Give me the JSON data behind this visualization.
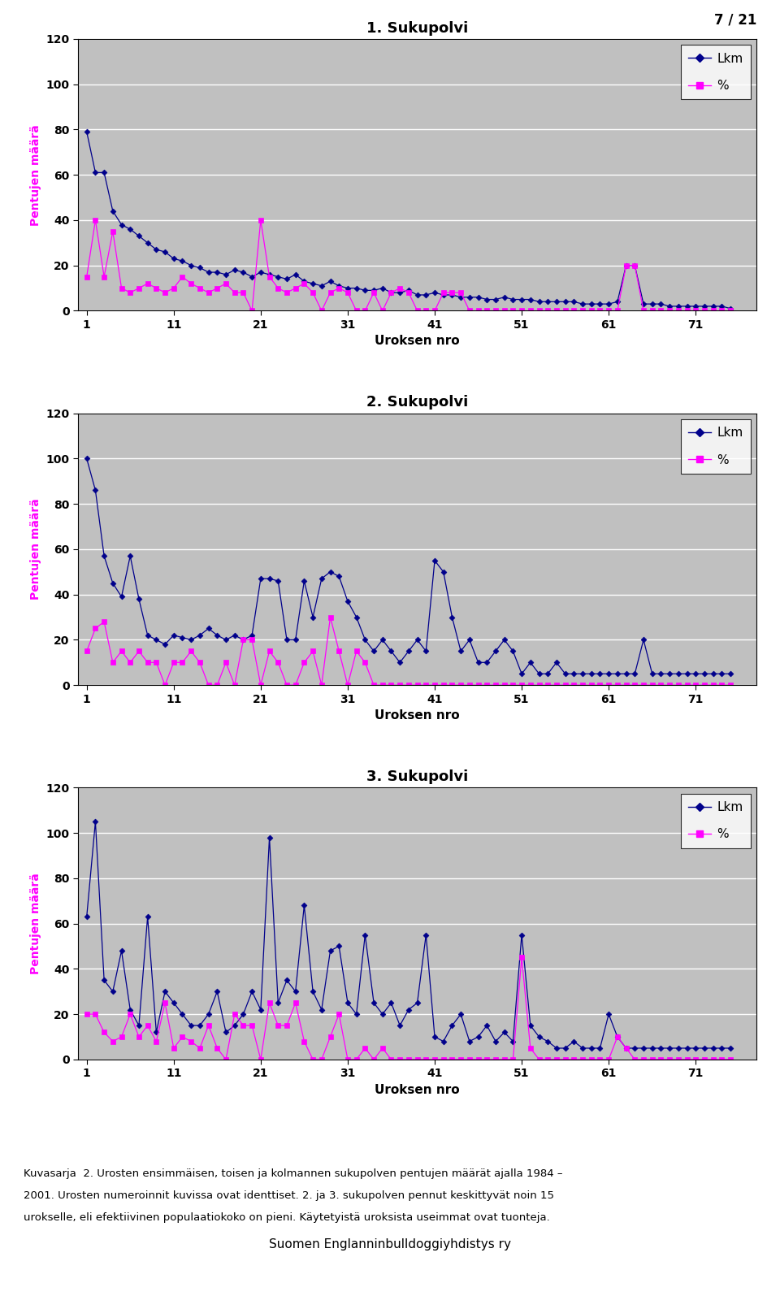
{
  "title1": "1. Sukupolvi",
  "title2": "2. Sukupolvi",
  "title3": "3. Sukupolvi",
  "xlabel": "Uroksen nro",
  "ylabel": "Pentujen määrä",
  "xticks": [
    1,
    11,
    21,
    31,
    41,
    51,
    61,
    71
  ],
  "ylim": [
    0,
    120
  ],
  "yticks": [
    0,
    20,
    40,
    60,
    80,
    100,
    120
  ],
  "gen1_lkm": [
    79,
    61,
    61,
    44,
    38,
    36,
    33,
    30,
    27,
    26,
    23,
    22,
    20,
    19,
    17,
    17,
    16,
    18,
    17,
    15,
    17,
    16,
    15,
    14,
    16,
    13,
    12,
    11,
    13,
    11,
    10,
    10,
    9,
    9,
    10,
    8,
    8,
    9,
    7,
    7,
    8,
    7,
    7,
    6,
    6,
    6,
    5,
    5,
    6,
    5,
    5,
    5,
    4,
    4,
    4,
    4,
    4,
    3,
    3,
    3,
    3,
    4,
    20,
    20,
    3,
    3,
    3,
    2,
    2,
    2,
    2,
    2,
    2,
    2,
    1
  ],
  "gen1_pct": [
    15,
    40,
    15,
    35,
    10,
    8,
    10,
    12,
    10,
    8,
    10,
    15,
    12,
    10,
    8,
    10,
    12,
    8,
    8,
    0,
    40,
    15,
    10,
    8,
    10,
    12,
    8,
    0,
    8,
    10,
    8,
    0,
    0,
    8,
    0,
    8,
    10,
    8,
    0,
    0,
    0,
    8,
    8,
    8,
    0,
    0,
    0,
    0,
    0,
    0,
    0,
    0,
    0,
    0,
    0,
    0,
    0,
    0,
    0,
    0,
    0,
    0,
    20,
    20,
    0,
    0,
    0,
    0,
    0,
    0,
    0,
    0,
    0,
    0,
    0
  ],
  "gen2_lkm": [
    100,
    86,
    57,
    45,
    39,
    57,
    38,
    22,
    20,
    18,
    22,
    21,
    20,
    22,
    25,
    22,
    20,
    22,
    20,
    22,
    47,
    47,
    46,
    20,
    20,
    46,
    30,
    47,
    50,
    48,
    37,
    30,
    20,
    15,
    20,
    15,
    10,
    15,
    20,
    15,
    55,
    50,
    30,
    15,
    20,
    10,
    10,
    15,
    20,
    15,
    5,
    10,
    5,
    5,
    10,
    5,
    5,
    5,
    5,
    5,
    5,
    5,
    5,
    5,
    20,
    5,
    5,
    5,
    5,
    5,
    5,
    5,
    5,
    5,
    5
  ],
  "gen2_pct": [
    15,
    25,
    28,
    10,
    15,
    10,
    15,
    10,
    10,
    0,
    10,
    10,
    15,
    10,
    0,
    0,
    10,
    0,
    20,
    20,
    0,
    15,
    10,
    0,
    0,
    10,
    15,
    0,
    30,
    15,
    0,
    15,
    10,
    0,
    0,
    0,
    0,
    0,
    0,
    0,
    0,
    0,
    0,
    0,
    0,
    0,
    0,
    0,
    0,
    0,
    0,
    0,
    0,
    0,
    0,
    0,
    0,
    0,
    0,
    0,
    0,
    0,
    0,
    0,
    0,
    0,
    0,
    0,
    0,
    0,
    0,
    0,
    0,
    0,
    0
  ],
  "gen3_lkm": [
    63,
    105,
    35,
    30,
    48,
    22,
    15,
    63,
    12,
    30,
    25,
    20,
    15,
    15,
    20,
    30,
    12,
    15,
    20,
    30,
    22,
    98,
    25,
    35,
    30,
    68,
    30,
    22,
    48,
    50,
    25,
    20,
    55,
    25,
    20,
    25,
    15,
    22,
    25,
    55,
    10,
    8,
    15,
    20,
    8,
    10,
    15,
    8,
    12,
    8,
    55,
    15,
    10,
    8,
    5,
    5,
    8,
    5,
    5,
    5,
    20,
    10,
    5,
    5,
    5,
    5,
    5,
    5,
    5,
    5,
    5,
    5,
    5,
    5,
    5
  ],
  "gen3_pct": [
    20,
    20,
    12,
    8,
    10,
    20,
    10,
    15,
    8,
    25,
    5,
    10,
    8,
    5,
    15,
    5,
    0,
    20,
    15,
    15,
    0,
    25,
    15,
    15,
    25,
    8,
    0,
    0,
    10,
    20,
    0,
    0,
    5,
    0,
    5,
    0,
    0,
    0,
    0,
    0,
    0,
    0,
    0,
    0,
    0,
    0,
    0,
    0,
    0,
    0,
    45,
    5,
    0,
    0,
    0,
    0,
    0,
    0,
    0,
    0,
    0,
    10,
    5,
    0,
    0,
    0,
    0,
    0,
    0,
    0,
    0,
    0,
    0,
    0,
    0
  ],
  "lkm_color": "#00008B",
  "pct_color": "#FF00FF",
  "plot_bg": "#C0C0C0",
  "ylabel_color": "#FF00FF",
  "footer_text1": "Kuvasarja  2. Urosten ensimmäisen, toisen ja kolmannen sukupolven pentujen määrät ajalla 1984 –",
  "footer_text2": "2001. Urosten numeroinnit kuvissa ovat identtiset. 2. ja 3. sukupolven pennut keskittyvät noin 15",
  "footer_text3": "urokselle, eli efektiivinen populaatiokoko on pieni. Käytetyistä uroksista useimmat ovat tuonteja.",
  "footer_center": "Suomen Englanninbulldoggiyhdistys ry",
  "page_num": "7 / 21"
}
